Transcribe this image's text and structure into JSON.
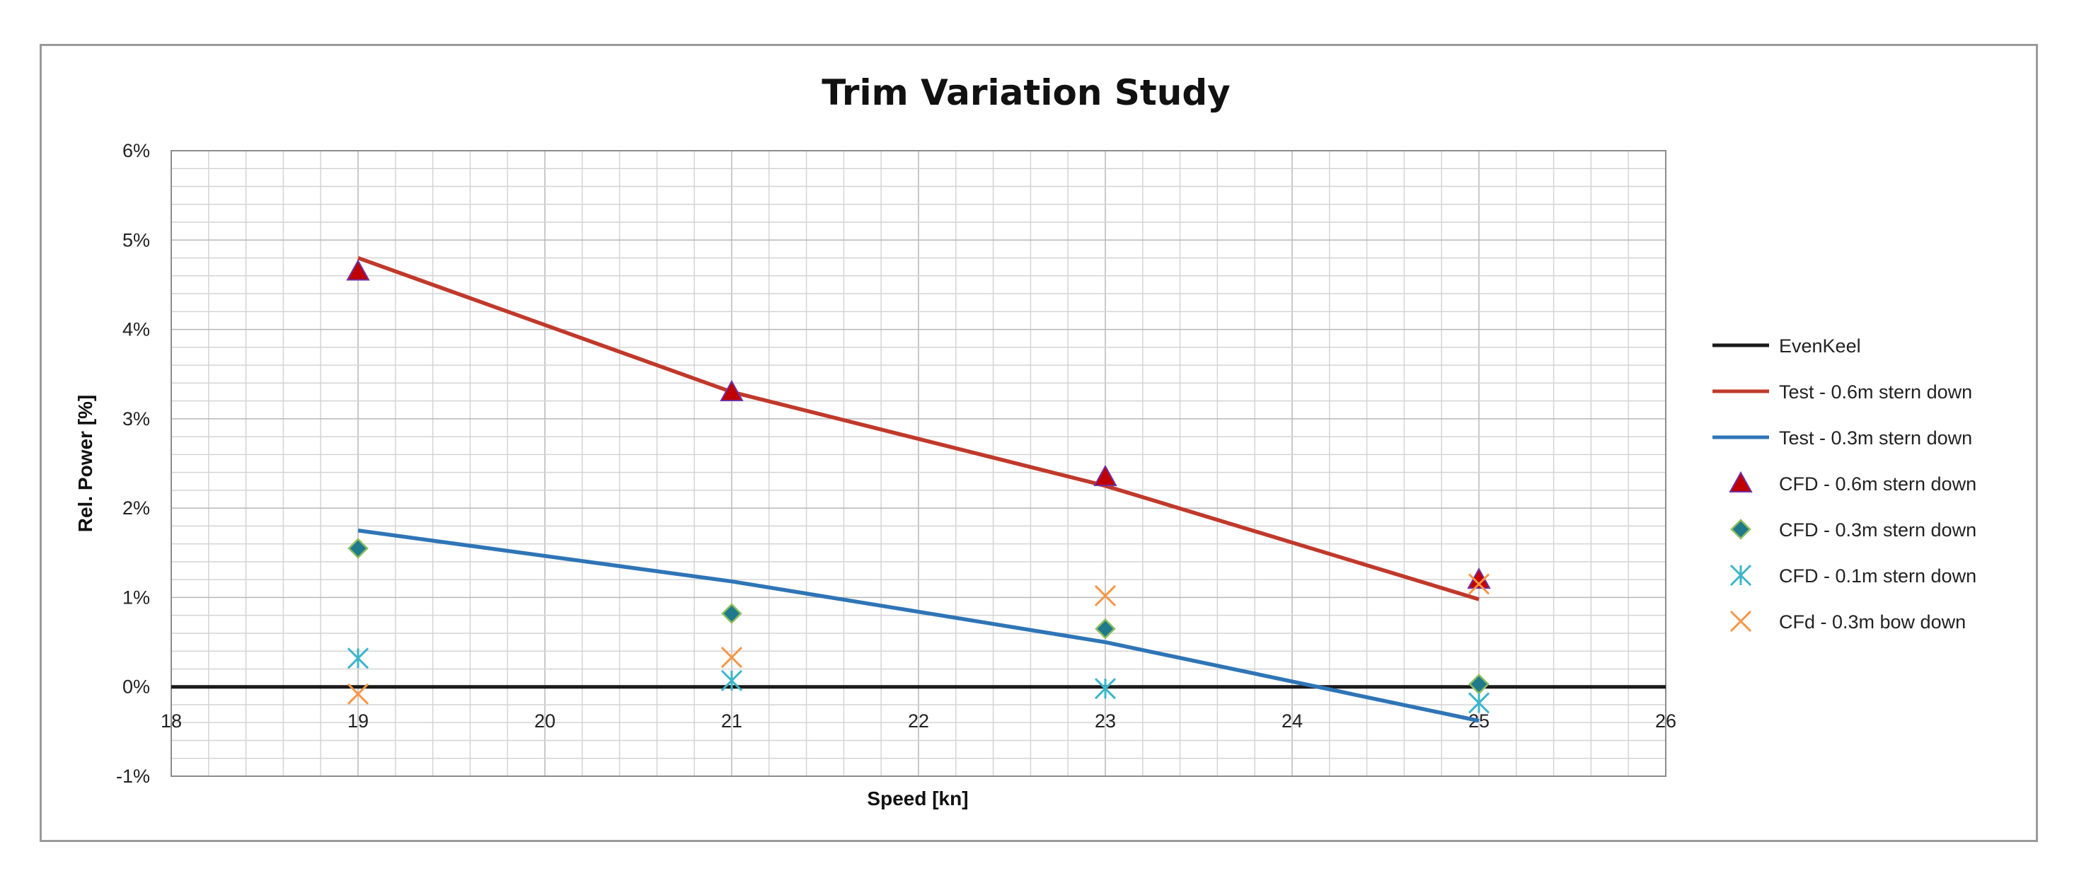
{
  "chart_data": {
    "type": "line",
    "title": "Trim Variation Study",
    "xlabel": "Speed [kn]",
    "ylabel": "Rel. Power [%]",
    "xlim": [
      18,
      26
    ],
    "ylim": [
      -1,
      6
    ],
    "x_ticks": [
      18,
      19,
      20,
      21,
      22,
      23,
      24,
      25,
      26
    ],
    "y_ticks": [
      -1,
      0,
      1,
      2,
      3,
      4,
      5,
      6
    ],
    "x_tick_labels": [
      "18",
      "19",
      "20",
      "21",
      "22",
      "23",
      "24",
      "25",
      "26"
    ],
    "y_tick_labels": [
      "-1%",
      "0%",
      "1%",
      "2%",
      "3%",
      "4%",
      "5%",
      "6%"
    ],
    "grid": true,
    "legend_position": "right",
    "series": [
      {
        "name": "EvenKeel",
        "style": "line",
        "color": "#1a1a1a",
        "x": [
          18,
          26
        ],
        "values": [
          0,
          0
        ]
      },
      {
        "name": "Test - 0.6m stern down",
        "style": "line",
        "color": "#c0392b",
        "x": [
          19,
          21,
          23,
          25
        ],
        "values": [
          4.8,
          3.3,
          2.25,
          0.98
        ]
      },
      {
        "name": "Test - 0.3m stern down",
        "style": "line",
        "color": "#2e75b6",
        "x": [
          19,
          21,
          23,
          25
        ],
        "values": [
          1.75,
          1.18,
          0.5,
          -0.38
        ]
      },
      {
        "name": "CFD - 0.6m stern down",
        "style": "marker",
        "marker": "triangle",
        "color": "#c00000",
        "x": [
          19,
          21,
          23,
          25
        ],
        "values": [
          4.65,
          3.3,
          2.35,
          1.2
        ]
      },
      {
        "name": "CFD - 0.3m stern down",
        "style": "marker",
        "marker": "diamond",
        "color": "#1f7a8c",
        "x": [
          19,
          21,
          23,
          25
        ],
        "values": [
          1.55,
          0.82,
          0.65,
          0.03
        ]
      },
      {
        "name": "CFD - 0.1m stern down",
        "style": "marker",
        "marker": "asterisk",
        "color": "#3bb5c9",
        "x": [
          19,
          21,
          23,
          25
        ],
        "values": [
          0.32,
          0.07,
          -0.02,
          -0.18
        ]
      },
      {
        "name": "CFd - 0.3m bow down",
        "style": "marker",
        "marker": "x",
        "color": "#f79646",
        "x": [
          19,
          21,
          23,
          25
        ],
        "values": [
          -0.08,
          0.33,
          1.02,
          1.15
        ]
      }
    ]
  }
}
